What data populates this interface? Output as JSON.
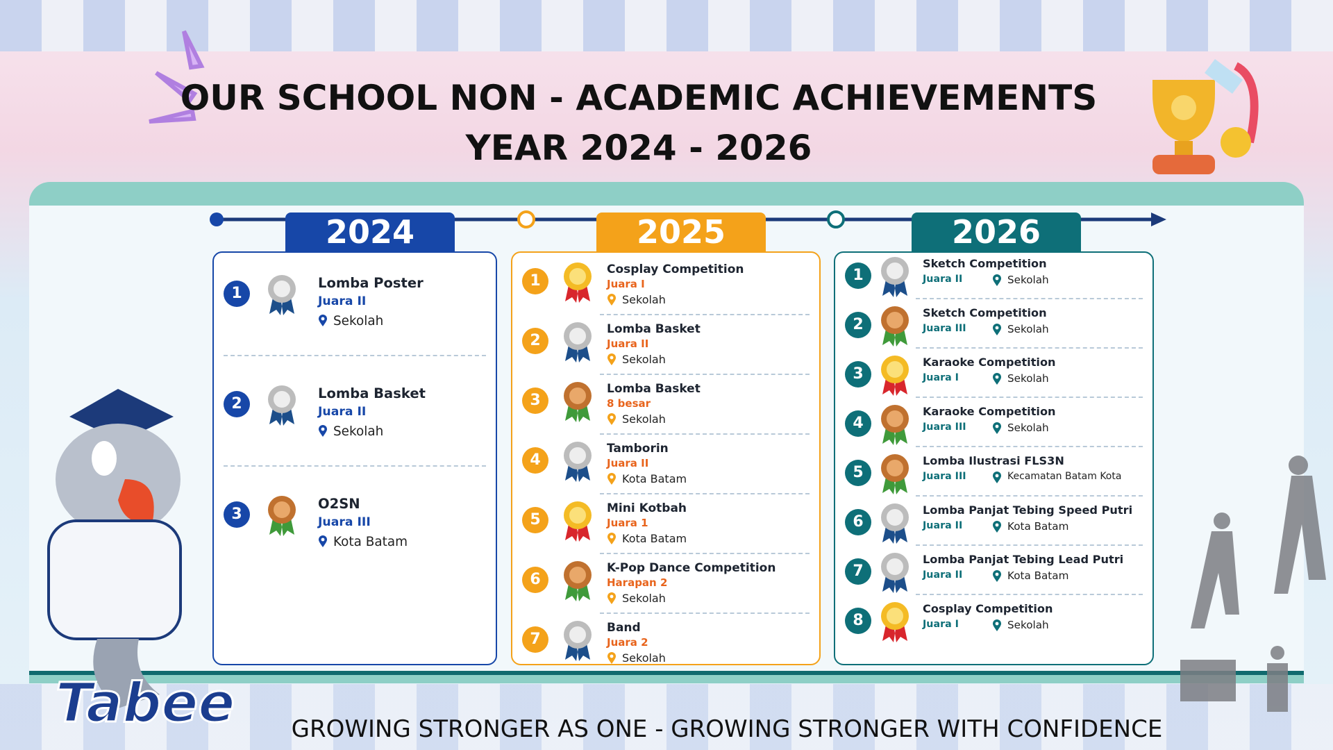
{
  "header": {
    "title": "OUR SCHOOL NON - ACADEMIC ACHIEVEMENTS",
    "subtitle": "YEAR 2024 - 2026"
  },
  "columns": [
    {
      "year": "2024",
      "color": "#1747a8",
      "award_color": "#1747a8",
      "items": [
        {
          "rank": "1",
          "name": "Lomba Poster",
          "award": "Juara II",
          "location": "Sekolah",
          "medal": "silver"
        },
        {
          "rank": "2",
          "name": "Lomba Basket",
          "award": "Juara II",
          "location": "Sekolah",
          "medal": "silver"
        },
        {
          "rank": "3",
          "name": "O2SN",
          "award": "Juara III",
          "location": "Kota Batam",
          "medal": "bronze"
        }
      ]
    },
    {
      "year": "2025",
      "color": "#f4a21a",
      "award_color": "#e8641c",
      "items": [
        {
          "rank": "1",
          "name": "Cosplay Competition",
          "award": "Juara I",
          "location": "Sekolah",
          "medal": "gold"
        },
        {
          "rank": "2",
          "name": "Lomba Basket",
          "award": "Juara II",
          "location": "Sekolah",
          "medal": "silver"
        },
        {
          "rank": "3",
          "name": "Lomba Basket",
          "award": "8 besar",
          "location": "Sekolah",
          "medal": "bronze"
        },
        {
          "rank": "4",
          "name": "Tamborin",
          "award": "Juara II",
          "location": "Kota Batam",
          "medal": "silver"
        },
        {
          "rank": "5",
          "name": "Mini Kotbah",
          "award": "Juara 1",
          "location": "Kota Batam",
          "medal": "gold"
        },
        {
          "rank": "6",
          "name": "K-Pop Dance Competition",
          "award": "Harapan 2",
          "location": "Sekolah",
          "medal": "bronze"
        },
        {
          "rank": "7",
          "name": "Band",
          "award": "Juara 2",
          "location": "Sekolah",
          "medal": "silver"
        }
      ]
    },
    {
      "year": "2026",
      "color": "#0e6f78",
      "award_color": "#0e6f78",
      "items": [
        {
          "rank": "1",
          "name": "Sketch Competition",
          "award": "Juara II",
          "location": "Sekolah",
          "medal": "silver"
        },
        {
          "rank": "2",
          "name": "Sketch Competition",
          "award": "Juara III",
          "location": "Sekolah",
          "medal": "bronze"
        },
        {
          "rank": "3",
          "name": "Karaoke Competition",
          "award": "Juara I",
          "location": "Sekolah",
          "medal": "gold"
        },
        {
          "rank": "4",
          "name": "Karaoke Competition",
          "award": "Juara III",
          "location": "Sekolah",
          "medal": "bronze"
        },
        {
          "rank": "5",
          "name": "Lomba Ilustrasi FLS3N",
          "award": "Juara III",
          "location": "Kecamatan Batam Kota",
          "medal": "bronze"
        },
        {
          "rank": "6",
          "name": "Lomba Panjat Tebing Speed Putri",
          "award": "Juara II",
          "location": "Kota Batam",
          "medal": "silver"
        },
        {
          "rank": "7",
          "name": "Lomba Panjat Tebing Lead Putri",
          "award": "Juara II",
          "location": "Kota Batam",
          "medal": "silver"
        },
        {
          "rank": "8",
          "name": "Cosplay Competition",
          "award": "Juara I",
          "location": "Sekolah",
          "medal": "gold"
        }
      ]
    }
  ],
  "footer": {
    "slogan": "GROWING STRONGER AS ONE - GROWING STRONGER WITH CONFIDENCE",
    "logo": "Tabee"
  }
}
